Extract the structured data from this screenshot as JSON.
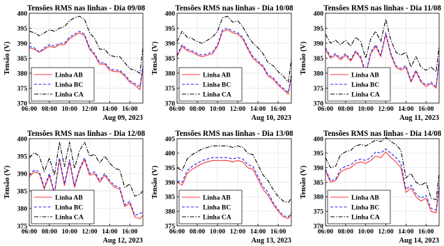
{
  "figure": {
    "ylabel": "Tensão (V)",
    "xticks": [
      "06:00",
      "08:00",
      "10:00",
      "12:00",
      "14:00",
      "16:00"
    ],
    "colors": {
      "AB": "#ff3333",
      "BC": "#2222ee",
      "CA": "#000000"
    }
  },
  "chart_data": [
    {
      "type": "line",
      "title": "Tensões RMS nas linhas - Dia 09/08",
      "xdate": "Aug 09, 2023",
      "ylabel": "Tensão (V)",
      "ylim": [
        370,
        400
      ],
      "yticks": [
        370,
        375,
        380,
        385,
        390,
        395,
        400
      ],
      "xlim": [
        6,
        17.3
      ],
      "x": [
        6.0,
        6.5,
        7.0,
        7.5,
        8.0,
        8.5,
        9.0,
        9.5,
        10.0,
        10.5,
        11.0,
        11.5,
        12.0,
        12.5,
        13.0,
        13.5,
        14.0,
        14.5,
        15.0,
        15.5,
        16.0,
        16.5,
        17.0,
        17.3
      ],
      "series": [
        {
          "name": "Linha AB",
          "style": "solid",
          "values": [
            388.5,
            388,
            387,
            388,
            389,
            388.5,
            389.5,
            389.5,
            391.5,
            392.5,
            393.5,
            392.5,
            388,
            386,
            383,
            383,
            381,
            380.5,
            380.5,
            379,
            377,
            376,
            374.5,
            382
          ]
        },
        {
          "name": "Linha BC",
          "style": "dashed",
          "values": [
            389,
            388.5,
            387,
            388.5,
            389.5,
            389,
            390,
            390,
            392,
            393,
            394,
            393,
            388.5,
            386.5,
            383.5,
            383.5,
            381.5,
            381,
            381,
            379.5,
            377.5,
            376.5,
            375.5,
            382.5
          ]
        },
        {
          "name": "Linha CA",
          "style": "dashdot",
          "values": [
            394,
            393.5,
            392.5,
            393.5,
            394.5,
            394,
            395,
            395.5,
            397.5,
            398.5,
            399,
            398,
            393.5,
            391.5,
            388,
            388,
            386,
            385.5,
            385.5,
            383.5,
            381.5,
            381,
            380,
            388.5
          ]
        }
      ]
    },
    {
      "type": "line",
      "title": "Tensões RMS nas linhas - Dia 10/08",
      "xdate": "Aug 10, 2023",
      "ylabel": "Tensão (V)",
      "ylim": [
        370,
        400
      ],
      "yticks": [
        370,
        375,
        380,
        385,
        390,
        395,
        400
      ],
      "xlim": [
        6,
        17.3
      ],
      "x": [
        6.0,
        6.5,
        7.0,
        7.5,
        8.0,
        8.5,
        9.0,
        9.5,
        10.0,
        10.5,
        11.0,
        11.5,
        12.0,
        12.5,
        13.0,
        13.5,
        14.0,
        14.5,
        15.0,
        15.5,
        16.0,
        16.5,
        17.0,
        17.3
      ],
      "series": [
        {
          "name": "Linha AB",
          "style": "solid",
          "values": [
            385.5,
            389,
            387.5,
            387,
            386,
            385.5,
            386,
            386.5,
            389,
            394,
            394.5,
            393.5,
            393,
            391.5,
            388,
            385,
            383.5,
            382,
            379,
            378,
            376,
            374.5,
            373,
            379
          ]
        },
        {
          "name": "Linha BC",
          "style": "dashed",
          "values": [
            386,
            389.5,
            388,
            387.5,
            386.5,
            386,
            386.5,
            387,
            389.5,
            394.5,
            395,
            394,
            393.5,
            392,
            388.5,
            385.5,
            384,
            382.5,
            379.5,
            378.5,
            376.5,
            375,
            373.5,
            379.5
          ]
        },
        {
          "name": "Linha CA",
          "style": "dashdot",
          "values": [
            390.5,
            394,
            392,
            391.5,
            390.5,
            390,
            391,
            392,
            394,
            398.5,
            399,
            397,
            397.5,
            395.5,
            392.5,
            390,
            388.5,
            386.5,
            383.5,
            382.5,
            380.5,
            379,
            377,
            384.5
          ]
        }
      ]
    },
    {
      "type": "line",
      "title": "Tensões RMS nas linhas - Dia 11/08",
      "xdate": "Aug 11, 2023",
      "ylabel": "Tensão (V)",
      "ylim": [
        370,
        400
      ],
      "yticks": [
        370,
        375,
        380,
        385,
        390,
        395,
        400
      ],
      "xlim": [
        6,
        17.3
      ],
      "x": [
        6.0,
        6.5,
        7.0,
        7.5,
        8.0,
        8.5,
        9.0,
        9.5,
        10.0,
        10.5,
        11.0,
        11.5,
        12.0,
        12.5,
        13.0,
        13.5,
        14.0,
        14.5,
        15.0,
        15.5,
        16.0,
        16.5,
        17.0,
        17.3
      ],
      "series": [
        {
          "name": "Linha AB",
          "style": "solid",
          "values": [
            388,
            385,
            386,
            384.5,
            386,
            384,
            387,
            385,
            379.5,
            386.5,
            389,
            385.5,
            393,
            386,
            382,
            381,
            382,
            377,
            380.5,
            377,
            375.5,
            376.5,
            375,
            384
          ]
        },
        {
          "name": "Linha BC",
          "style": "dashed",
          "values": [
            388.5,
            385.5,
            386.5,
            385,
            386.5,
            384.5,
            387.5,
            385.5,
            380,
            387,
            389.5,
            386,
            393.5,
            386.5,
            382.5,
            381.5,
            382.5,
            377.5,
            381,
            377.5,
            376,
            377,
            375.5,
            384.5
          ]
        },
        {
          "name": "Linha CA",
          "style": "dashdot",
          "values": [
            393,
            390,
            391,
            389.5,
            391,
            389,
            392,
            390.5,
            385,
            391.5,
            394,
            390.5,
            398,
            391,
            387,
            386,
            387,
            382,
            385.5,
            382,
            381,
            382,
            380.5,
            389
          ]
        }
      ]
    },
    {
      "type": "line",
      "title": "Tensões RMS nas linhas - Dia 12/08",
      "xdate": "Aug 12, 2023",
      "ylabel": "Tensão (V)",
      "ylim": [
        375,
        400
      ],
      "yticks": [
        375,
        380,
        385,
        390,
        395,
        400
      ],
      "xlim": [
        6,
        17.3
      ],
      "x": [
        6.0,
        6.5,
        7.0,
        7.5,
        8.0,
        8.5,
        9.0,
        9.5,
        10.0,
        10.5,
        11.0,
        11.5,
        12.0,
        12.5,
        13.0,
        13.5,
        14.0,
        14.5,
        15.0,
        15.5,
        16.0,
        16.5,
        17.0,
        17.3
      ],
      "series": [
        {
          "name": "Linha AB",
          "style": "solid",
          "values": [
            389,
            390.5,
            390,
            385.5,
            389.5,
            384,
            394,
            386.5,
            393.5,
            386,
            391,
            394,
            389.5,
            390,
            387.5,
            389.5,
            387.5,
            386,
            385.5,
            380.5,
            381.5,
            377.5,
            377,
            378
          ]
        },
        {
          "name": "Linha BC",
          "style": "dashed",
          "values": [
            389.5,
            391,
            390.5,
            386,
            390,
            384.5,
            394.5,
            387,
            394,
            386.5,
            391.5,
            394.5,
            390,
            390.5,
            388,
            390,
            388,
            386.5,
            386,
            381,
            382,
            378,
            378.5,
            379
          ]
        },
        {
          "name": "Linha CA",
          "style": "dashdot",
          "values": [
            394.5,
            396,
            395,
            390.5,
            394.5,
            389.5,
            399,
            392,
            399,
            391.5,
            396.5,
            399,
            395,
            395.5,
            393,
            395,
            393,
            391.5,
            391,
            386,
            387,
            383.5,
            384,
            385
          ]
        }
      ]
    },
    {
      "type": "line",
      "title": "Tensões RMS nas linhas - Dia 13/08",
      "xdate": "Aug 13, 2023",
      "ylabel": "Tensão (V)",
      "ylim": [
        375,
        405
      ],
      "yticks": [
        375,
        380,
        385,
        390,
        395,
        400,
        405
      ],
      "xlim": [
        6,
        17.3
      ],
      "x": [
        6.0,
        6.5,
        7.0,
        7.5,
        8.0,
        8.5,
        9.0,
        9.5,
        10.0,
        10.5,
        11.0,
        11.5,
        12.0,
        12.5,
        13.0,
        13.5,
        14.0,
        14.5,
        15.0,
        15.5,
        16.0,
        16.5,
        17.0,
        17.3
      ],
      "series": [
        {
          "name": "Linha AB",
          "style": "solid",
          "values": [
            390,
            389,
            393,
            394.5,
            395.5,
            396.5,
            397,
            397.5,
            397.5,
            397.5,
            397.5,
            397,
            397.5,
            397,
            395,
            394.5,
            391,
            387.5,
            385.5,
            382.5,
            380,
            378,
            377.5,
            379
          ]
        },
        {
          "name": "Linha BC",
          "style": "dashed",
          "values": [
            390.5,
            390,
            394,
            395.5,
            396.5,
            397.5,
            398,
            398.5,
            398.5,
            398.5,
            398.5,
            398,
            398.5,
            398,
            396,
            395.5,
            392,
            388.5,
            386.5,
            383,
            380.5,
            378.5,
            378,
            379.5
          ]
        },
        {
          "name": "Linha CA",
          "style": "dashdot",
          "values": [
            395,
            394,
            398,
            399.5,
            400.5,
            401.5,
            402,
            402.5,
            402.5,
            402.5,
            402.5,
            402,
            402.5,
            402,
            400,
            399.5,
            396,
            392.5,
            390.5,
            387.5,
            385,
            383.5,
            383,
            384.5
          ]
        }
      ]
    },
    {
      "type": "line",
      "title": "Tensões RMS nas linhas - Dia 14/08",
      "xdate": "Aug 14, 2023",
      "ylabel": "Tensão (V)",
      "ylim": [
        370,
        400
      ],
      "yticks": [
        370,
        375,
        380,
        385,
        390,
        395,
        400
      ],
      "xlim": [
        6,
        17.3
      ],
      "x": [
        6.0,
        6.5,
        7.0,
        7.5,
        8.0,
        8.5,
        9.0,
        9.5,
        10.0,
        10.5,
        11.0,
        11.5,
        12.0,
        12.5,
        13.0,
        13.5,
        14.0,
        14.5,
        15.0,
        15.5,
        16.0,
        16.5,
        17.0,
        17.3
      ],
      "series": [
        {
          "name": "Linha AB",
          "style": "solid",
          "values": [
            389,
            385,
            385.5,
            388.5,
            389.5,
            390,
            391.5,
            392,
            391.5,
            392.5,
            394,
            393.5,
            395.5,
            393.5,
            392,
            390,
            381.5,
            383,
            380,
            378.5,
            379.5,
            375,
            374.5,
            383
          ]
        },
        {
          "name": "Linha BC",
          "style": "dashed",
          "values": [
            389.5,
            385.5,
            386,
            389.5,
            390.5,
            391,
            392.5,
            393,
            392.5,
            393.5,
            395.5,
            395,
            396.5,
            395,
            393.5,
            391.5,
            382.5,
            384,
            381,
            379.5,
            380.5,
            376,
            375.5,
            384
          ]
        },
        {
          "name": "Linha CA",
          "style": "dashdot",
          "values": [
            393.5,
            390,
            390.5,
            394.5,
            395.5,
            396,
            397.5,
            398,
            397.5,
            398.5,
            399.5,
            399,
            400.5,
            399,
            398,
            396,
            386.5,
            388,
            385,
            384,
            385,
            379.5,
            379,
            388
          ]
        }
      ]
    }
  ]
}
